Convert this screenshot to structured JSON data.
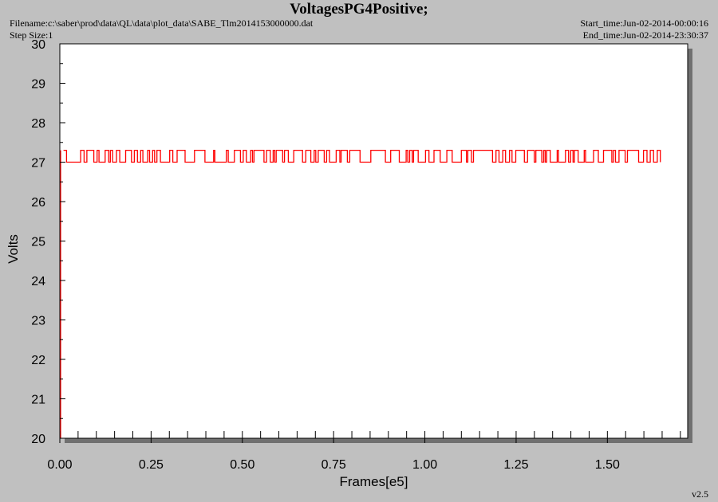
{
  "header": {
    "title": "VoltagesPG4Positive;",
    "filename": "Filename:c:\\saber\\prod\\data\\QL\\data\\plot_data\\SABE_Tlm2014153000000.dat",
    "step_size": "Step Size:1",
    "start_time": "Start_time:Jun-02-2014-00:00:16",
    "end_time": "End_time:Jun-02-2014-23:30:37"
  },
  "version": "v2.5",
  "colors": {
    "background": "#c0c0c0",
    "plot_area": "#ffffff",
    "series": "#ff0000",
    "shadow": "#707070"
  },
  "chart_data": {
    "type": "line",
    "title": "VoltagesPG4Positive;",
    "xlabel": "Frames[e5]",
    "ylabel": "Volts",
    "xlim": [
      0.0,
      1.72
    ],
    "ylim": [
      20,
      30
    ],
    "x_ticks": [
      "0.00",
      "0.25",
      "0.50",
      "0.75",
      "1.00",
      "1.25",
      "1.50"
    ],
    "y_ticks": [
      "20",
      "21",
      "22",
      "23",
      "24",
      "25",
      "26",
      "27",
      "28",
      "29",
      "30"
    ],
    "grid": false,
    "series": [
      {
        "levels": [
          27.0,
          27.3
        ],
        "x_range": [
          0.01,
          1.645
        ],
        "description_values": "alternating between 27.0 and 27.3 V over the full range"
      }
    ]
  }
}
